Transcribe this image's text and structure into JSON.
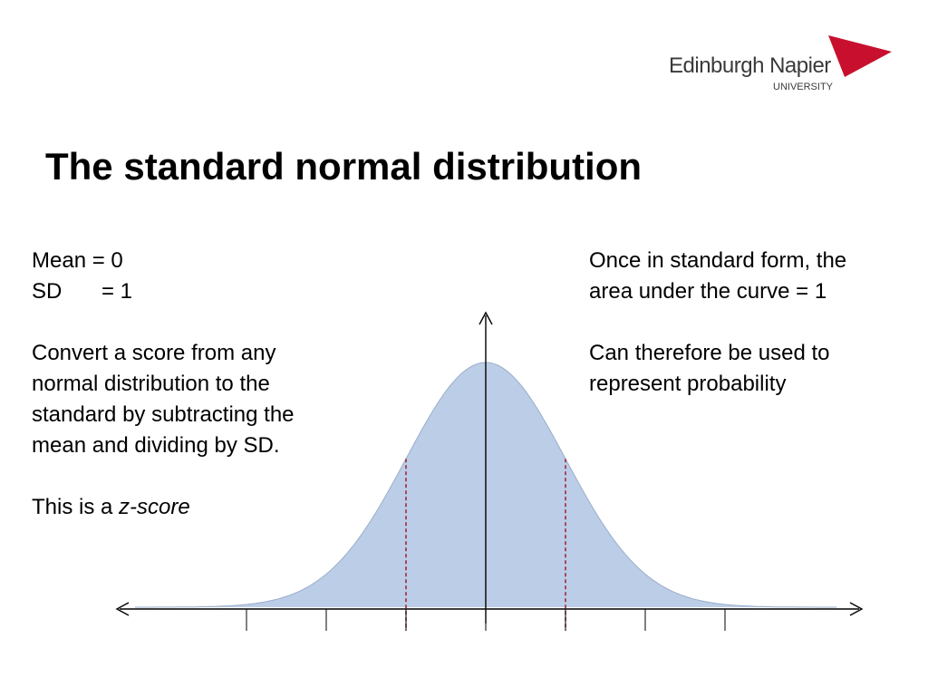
{
  "brand": {
    "name": "Edinburgh Napier",
    "subtitle": "UNIVERSITY",
    "flag_color": "#c8102e"
  },
  "slide": {
    "title": "The standard normal distribution"
  },
  "left_text": {
    "mean_line": "Mean = 0",
    "sd_label": "SD",
    "sd_value": "= 1",
    "convert_lines": [
      "Convert a score from any",
      "normal distribution to the",
      "standard by subtracting the",
      "mean and dividing by SD."
    ],
    "zscore_prefix": "This is a ",
    "zscore_term": "z-score"
  },
  "right_text": {
    "lines_1": [
      "Once in standard form, the",
      "area under the curve = 1"
    ],
    "lines_2": [
      "Can therefore be used to",
      "represent probability"
    ]
  },
  "diagram": {
    "curve_fill": "#bccde8",
    "marker_color": "#a0283c",
    "axis_color": "#000000",
    "x_range_sd": [
      -4.4,
      4.4
    ],
    "tick_positions_sd": [
      -3,
      -2,
      -1,
      0,
      1,
      2,
      3
    ],
    "marker_positions_sd": [
      -1,
      1
    ]
  }
}
